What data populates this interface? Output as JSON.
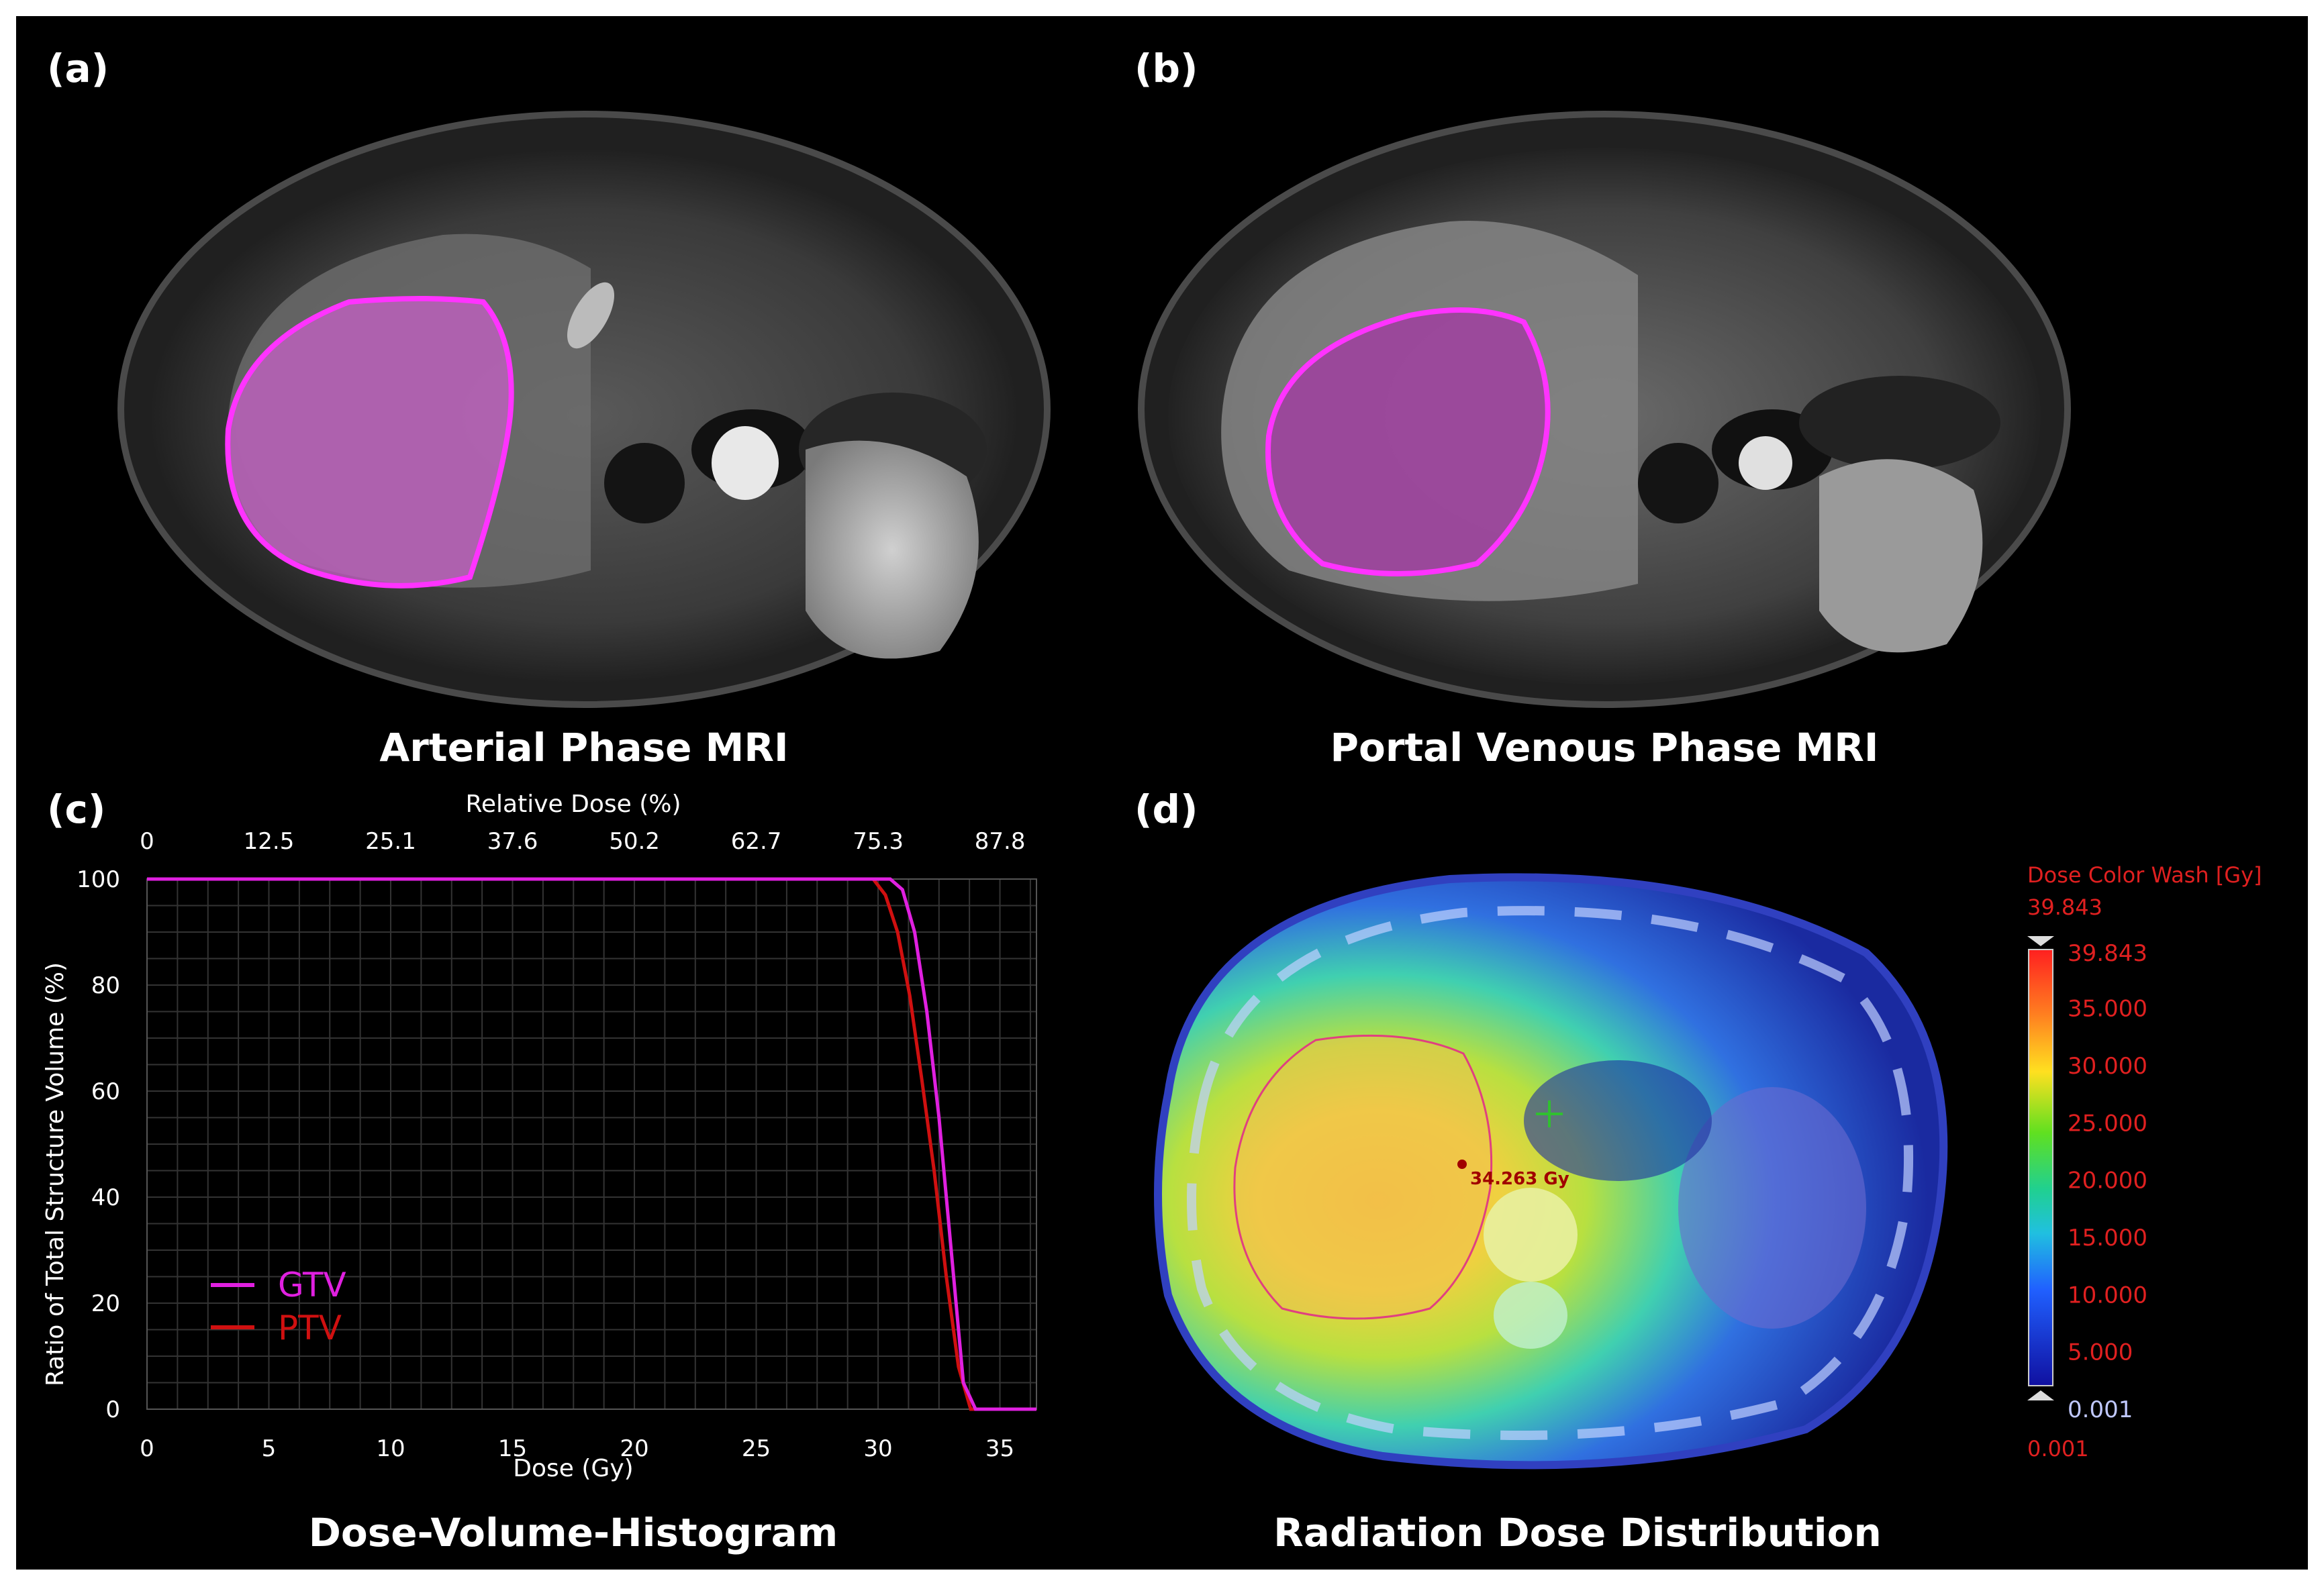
{
  "panels": {
    "a": {
      "letter": "(a)",
      "caption": "Arterial Phase MRI"
    },
    "b": {
      "letter": "(b)",
      "caption": "Portal Venous Phase MRI"
    },
    "c": {
      "letter": "(c)",
      "caption": "Dose-Volume-Histogram"
    },
    "d": {
      "letter": "(d)",
      "caption": "Radiation Dose Distribution"
    }
  },
  "dvh": {
    "type": "line",
    "top_axis_label": "Relative Dose (%)",
    "top_ticks": [
      "0",
      "12.5",
      "25.1",
      "37.6",
      "50.2",
      "62.7",
      "75.3",
      "87.8"
    ],
    "xlabel": "Dose (Gy)",
    "ylabel": "Ratio of Total Structure Volume (%)",
    "x_ticks": [
      "0",
      "5",
      "10",
      "15",
      "20",
      "25",
      "30",
      "35"
    ],
    "y_ticks": [
      "0",
      "20",
      "40",
      "60",
      "80",
      "100"
    ],
    "xlim": [
      0,
      36.5
    ],
    "ylim": [
      0,
      100
    ],
    "legend": [
      {
        "name": "GTV",
        "color": "#e020e0"
      },
      {
        "name": "PTV",
        "color": "#d01010"
      }
    ]
  },
  "chart_data": {
    "type": "line",
    "xlabel": "Dose (Gy)",
    "ylabel": "Ratio of Total Structure Volume (%)",
    "xlim": [
      0,
      36.5
    ],
    "ylim": [
      0,
      100
    ],
    "grid": true,
    "legend_position": "bottom-left",
    "series": [
      {
        "name": "GTV",
        "color": "#e020e0",
        "x": [
          0,
          30.5,
          31.0,
          31.5,
          32.0,
          32.5,
          33.0,
          33.5,
          34.0,
          36.5
        ],
        "y": [
          100,
          100,
          98,
          90,
          75,
          55,
          30,
          5,
          0,
          0
        ]
      },
      {
        "name": "PTV",
        "color": "#d01010",
        "x": [
          0,
          29.8,
          30.3,
          30.8,
          31.3,
          31.8,
          32.3,
          32.8,
          33.3,
          33.8,
          36.5
        ],
        "y": [
          100,
          100,
          97,
          90,
          78,
          62,
          45,
          25,
          8,
          0,
          0
        ]
      }
    ]
  },
  "dose": {
    "title": "Dose Color Wash [Gy]",
    "max_label": "39.843",
    "scale_ticks": [
      "39.843",
      "35.000",
      "30.000",
      "25.000",
      "20.000",
      "15.000",
      "10.000",
      "5.000",
      "0.001"
    ],
    "min_label": "0.001",
    "point_readout": "34.263 Gy"
  }
}
